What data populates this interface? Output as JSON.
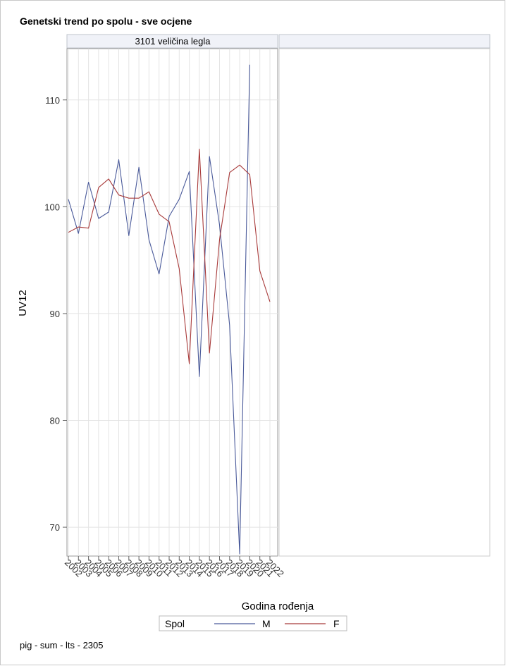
{
  "title": "Genetski trend po spolu - sve ocjene",
  "footnote": "pig - sum - lts - 2305",
  "chart_data": {
    "type": "line",
    "panel_label": "3101 veličina legla",
    "xlabel": "Godina rođenja",
    "ylabel": "UV12",
    "x": [
      2002,
      2003,
      2004,
      2005,
      2006,
      2007,
      2008,
      2009,
      2010,
      2011,
      2012,
      2013,
      2014,
      2015,
      2016,
      2017,
      2018,
      2019,
      2020,
      2021,
      2022
    ],
    "x_tick_labels": [
      "2002",
      "2003",
      "2004",
      "2005",
      "2006",
      "2007",
      "2008",
      "2009",
      "2010",
      "2011",
      "2012",
      "2013",
      "2014",
      "2015",
      "2016",
      "2017",
      "2018",
      "2019",
      "2020",
      "2021",
      "2022"
    ],
    "ylim": [
      67.3,
      114.8
    ],
    "y_ticks": [
      70,
      80,
      90,
      100,
      110
    ],
    "grid": true,
    "legend_title": "Spol",
    "legend_position": "bottom",
    "series": [
      {
        "name": "M",
        "color": "#4a5a9a",
        "values": [
          100.7,
          97.5,
          102.3,
          98.9,
          99.5,
          104.4,
          97.3,
          103.7,
          96.9,
          93.7,
          99.1,
          100.7,
          103.3,
          84.1,
          104.7,
          98.3,
          88.9,
          67.5,
          113.3,
          null,
          null
        ]
      },
      {
        "name": "F",
        "color": "#a83a3a",
        "values": [
          97.6,
          98.1,
          98.0,
          101.8,
          102.6,
          101.1,
          100.8,
          100.8,
          101.4,
          99.3,
          98.6,
          94.2,
          85.3,
          105.4,
          86.3,
          96.9,
          103.2,
          103.9,
          103.0,
          94.0,
          91.1
        ]
      }
    ]
  }
}
